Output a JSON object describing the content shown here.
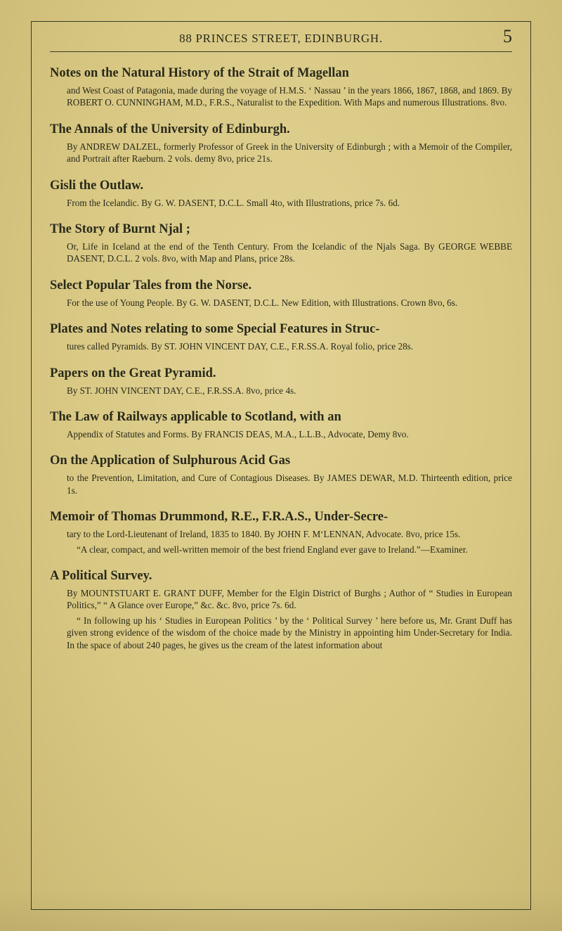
{
  "page": {
    "running_head": "88 PRINCES STREET, EDINBURGH.",
    "page_number": "5"
  },
  "colors": {
    "paper_center": "#e2d396",
    "paper_edge": "#c9b872",
    "ink": "#2a2a1a",
    "rule": "#3a3a25"
  },
  "typography": {
    "body_family": "Georgia, 'Times New Roman', serif",
    "title_size_pt": 14,
    "body_size_pt": 10,
    "running_head_size_pt": 13,
    "pagenum_size_pt": 20
  },
  "entries": [
    {
      "title": "Notes on the Natural History of the Strait of Magellan",
      "body": "and West Coast of Patagonia, made during the voyage of H.M.S. ‘ Nassau ’ in the years 1866, 1867, 1868, and 1869. By ROBERT O. CUNNINGHAM, M.D., F.R.S., Naturalist to the Expedition. With Maps and numerous Illustrations. 8vo."
    },
    {
      "title": "The Annals of the University of Edinburgh.",
      "body": "By ANDREW DALZEL, formerly Professor of Greek in the University of Edinburgh ; with a Memoir of the Compiler, and Portrait after Raeburn. 2 vols. demy 8vo, price 21s."
    },
    {
      "title": "Gisli the Outlaw.",
      "body": "From the Icelandic. By G. W. DASENT, D.C.L. Small 4to, with Illustrations, price 7s. 6d."
    },
    {
      "title": "The Story of Burnt Njal ;",
      "body": "Or, Life in Iceland at the end of the Tenth Century. From the Icelandic of the Njals Saga. By GEORGE WEBBE DASENT, D.C.L. 2 vols. 8vo, with Map and Plans, price 28s."
    },
    {
      "title": "Select Popular Tales from the Norse.",
      "body": "For the use of Young People. By G. W. DASENT, D.C.L. New Edition, with Illustrations. Crown 8vo, 6s."
    },
    {
      "title": "Plates and Notes relating to some Special Features in Struc-",
      "body": "tures called Pyramids. By ST. JOHN VINCENT DAY, C.E., F.R.SS.A. Royal folio, price 28s."
    },
    {
      "title": "Papers on the Great Pyramid.",
      "body": "By ST. JOHN VINCENT DAY, C.E., F.R.SS.A. 8vo, price 4s."
    },
    {
      "title": "The Law of Railways applicable to Scotland, with an",
      "body": "Appendix of Statutes and Forms. By FRANCIS DEAS, M.A., L.L.B., Advocate, Demy 8vo."
    },
    {
      "title": "On the Application of Sulphurous Acid Gas",
      "body": "to the Prevention, Limitation, and Cure of Contagious Diseases. By JAMES DEWAR, M.D. Thirteenth edition, price 1s."
    },
    {
      "title": "Memoir of Thomas Drummond, R.E., F.R.A.S., Under-Secre-",
      "body": "tary to the Lord-Lieutenant of Ireland, 1835 to 1840. By JOHN F. M‘LENNAN, Advocate. 8vo, price 15s.",
      "quote": "“A clear, compact, and well-written memoir of the best friend England ever gave to Ireland.”—Examiner."
    },
    {
      "title": "A Political Survey.",
      "body": "By MOUNTSTUART E. GRANT DUFF, Member for the Elgin District of Burghs ; Author of “ Studies in European Politics,” “ A Glance over Europe,” &c. &c. 8vo, price 7s. 6d.",
      "quote": "“ In following up his ‘ Studies in European Politics ’ by the ‘ Political Survey ’ here before us, Mr. Grant Duff has given strong evidence of the wisdom of the choice made by the Ministry in appointing him Under-Secretary for India. In the space of about 240 pages, he gives us the cream of the latest information about"
    }
  ]
}
